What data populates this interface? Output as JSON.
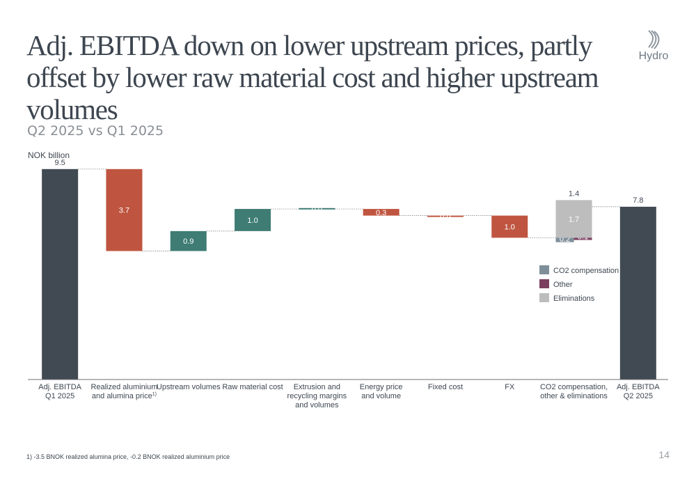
{
  "title": "Adj. EBITDA down on lower upstream prices, partly offset by lower raw material cost and higher upstream volumes",
  "subtitle": "Q2 2025 vs Q1 2025",
  "logo": {
    "text": "Hydro",
    "icon": "hydro-logo-icon"
  },
  "footnote": "1) -3.5 BNOK realized alumina price, -0.2 BNOK realized aluminium price",
  "page_number": "14",
  "colors": {
    "total": "#414a53",
    "decrease": "#bf5540",
    "increase": "#3e7c74",
    "co2_compensation": "#7f8f99",
    "other": "#7a3f5e",
    "eliminations": "#bdbdbd"
  },
  "chart_data": {
    "type": "waterfall",
    "unit_label": "NOK billion",
    "ylim": [
      0,
      10.5
    ],
    "categories": [
      {
        "label": [
          "Adj. EBITDA",
          "Q1 2025"
        ],
        "kind": "total",
        "value": 9.5,
        "label_text": "9.5"
      },
      {
        "label": [
          "Realized aluminium",
          "and alumina price"
        ],
        "footnote_mark": "1)",
        "kind": "delta",
        "value": -3.7,
        "label_text": "3.7"
      },
      {
        "label": [
          "Upstream volumes"
        ],
        "kind": "delta",
        "value": 0.9,
        "label_text": "0.9"
      },
      {
        "label": [
          "Raw material cost"
        ],
        "kind": "delta",
        "value": 1.0,
        "label_text": "1.0"
      },
      {
        "label": [
          "Extrusion and",
          "recycling margins",
          "and volumes"
        ],
        "kind": "delta",
        "value": 0.0,
        "display_value": 0.04,
        "label_text": "0.0"
      },
      {
        "label": [
          "Energy price",
          "and volume"
        ],
        "kind": "delta",
        "value": -0.3,
        "label_text": "0.3"
      },
      {
        "label": [
          "Fixed cost"
        ],
        "kind": "delta",
        "value": -0.0,
        "display_value": -0.04,
        "label_text": "0.0"
      },
      {
        "label": [
          "FX"
        ],
        "kind": "delta",
        "value": -1.0,
        "label_text": "1.0"
      },
      {
        "label": [
          "CO2 compensation,",
          "other & eliminations"
        ],
        "kind": "stacked",
        "total_label": "1.4",
        "segments": [
          {
            "name": "CO2 compensation",
            "value": -0.2,
            "label_text": "0.2"
          },
          {
            "name": "Other",
            "value": -0.1,
            "label_text": "0.1"
          },
          {
            "name": "Eliminations",
            "value": 1.7,
            "label_text": "1.7"
          }
        ]
      },
      {
        "label": [
          "Adj. EBITDA",
          "Q2 2025"
        ],
        "kind": "total",
        "value": 7.8,
        "label_text": "7.8"
      }
    ],
    "legend": {
      "placement": "right-middle",
      "items": [
        {
          "name": "CO2 compensation",
          "color_key": "co2_compensation"
        },
        {
          "name": "Other",
          "color_key": "other"
        },
        {
          "name": "Eliminations",
          "color_key": "eliminations"
        }
      ]
    }
  }
}
